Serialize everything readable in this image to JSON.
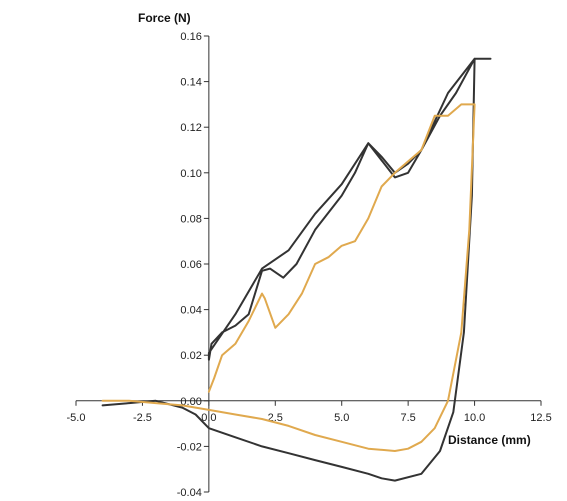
{
  "chart_data": {
    "type": "line",
    "title": "",
    "xlabel": "Distance (mm)",
    "ylabel": "Force (N)",
    "xlim": [
      -5.0,
      12.5
    ],
    "ylim": [
      -0.04,
      0.16
    ],
    "grid": false,
    "x_ticks": [
      "-5.0",
      "-2.5",
      "0.0",
      "2.5",
      "5.0",
      "7.5",
      "10.0",
      "12.5"
    ],
    "y_ticks": [
      "-0.04",
      "-0.02",
      "0.00",
      "0.02",
      "0.04",
      "0.06",
      "0.08",
      "0.10",
      "0.12",
      "0.14",
      "0.16"
    ],
    "colors": {
      "dark": "#333333",
      "orange": "#e0a94e"
    },
    "series": [
      {
        "color": "#333333",
        "x": [
          -4.0,
          -3.0,
          -2.0,
          -1.0,
          -0.5,
          0.0,
          1.0,
          2.0,
          3.0,
          4.0,
          5.0,
          6.0,
          6.5,
          7.0,
          8.0,
          8.7,
          9.2,
          9.6,
          9.9,
          10.0,
          10.0,
          10.2,
          10.4,
          10.6,
          10.0,
          9.0,
          8.0,
          7.5,
          7.0,
          6.0,
          5.0,
          4.0,
          3.0,
          2.0,
          1.0,
          0.0,
          0.0,
          0.1,
          0.5,
          1.0,
          1.5,
          2.0,
          2.3,
          2.8,
          3.3,
          4.0,
          5.0,
          5.5,
          6.0,
          6.5,
          7.0,
          7.5,
          8.0,
          8.7,
          9.3,
          10.0
        ],
        "y": [
          -0.002,
          -0.001,
          0.0,
          -0.003,
          -0.006,
          -0.012,
          -0.016,
          -0.02,
          -0.023,
          -0.026,
          -0.029,
          -0.032,
          -0.034,
          -0.035,
          -0.032,
          -0.022,
          -0.005,
          0.03,
          0.09,
          0.15,
          0.15,
          0.15,
          0.15,
          0.15,
          0.15,
          0.135,
          0.11,
          0.1,
          0.098,
          0.113,
          0.095,
          0.082,
          0.066,
          0.058,
          0.038,
          0.021,
          0.018,
          0.025,
          0.03,
          0.033,
          0.038,
          0.057,
          0.058,
          0.054,
          0.06,
          0.075,
          0.09,
          0.1,
          0.113,
          0.107,
          0.1,
          0.104,
          0.11,
          0.125,
          0.135,
          0.15
        ]
      },
      {
        "color": "#e0a94e",
        "x": [
          -4.0,
          -3.0,
          -2.0,
          -1.0,
          0.0,
          1.0,
          2.0,
          3.0,
          4.0,
          5.0,
          6.0,
          7.0,
          7.5,
          8.0,
          8.5,
          9.0,
          9.5,
          9.8,
          10.0,
          10.0,
          9.5,
          9.0,
          8.5,
          8.0,
          7.5,
          7.0,
          6.5,
          6.0,
          5.5,
          5.0,
          4.5,
          4.0,
          3.5,
          3.0,
          2.5,
          2.1,
          2.0,
          1.5,
          1.0,
          0.5,
          0.2,
          0.0
        ],
        "y": [
          0.0,
          0.0,
          -0.001,
          -0.002,
          -0.004,
          -0.006,
          -0.008,
          -0.011,
          -0.015,
          -0.018,
          -0.021,
          -0.022,
          -0.021,
          -0.018,
          -0.012,
          0.0,
          0.03,
          0.075,
          0.13,
          0.13,
          0.13,
          0.125,
          0.125,
          0.11,
          0.105,
          0.1,
          0.094,
          0.08,
          0.07,
          0.068,
          0.063,
          0.06,
          0.047,
          0.038,
          0.032,
          0.045,
          0.047,
          0.035,
          0.025,
          0.02,
          0.01,
          0.004
        ]
      }
    ]
  }
}
